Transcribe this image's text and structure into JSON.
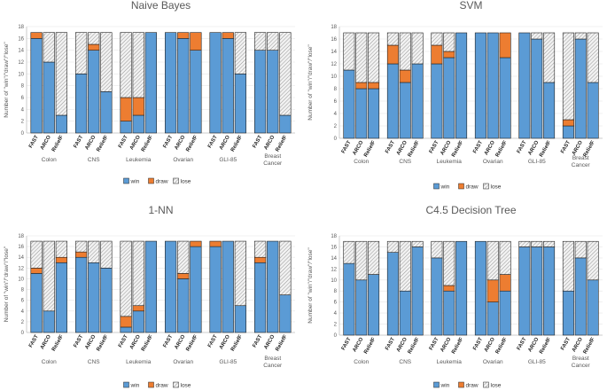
{
  "figure": {
    "legend_labels": {
      "win": "win",
      "draw": "draw",
      "lose": "lose"
    },
    "colors": {
      "win": "#5b9bd5",
      "draw": "#ed7d31",
      "lose": "#e8e8e8",
      "edge": "#222222"
    }
  },
  "chart_data": [
    {
      "type": "bar",
      "stacked": true,
      "title": "Naive Bayes",
      "ylabel": "Number of \"win\"/\"draw\"/\"lose\"",
      "ylim": [
        0,
        18
      ],
      "yticks": [
        0,
        2,
        4,
        6,
        8,
        10,
        12,
        14,
        16,
        18
      ],
      "groups": [
        "Colon",
        "CNS",
        "Leukemia",
        "Ovarian",
        "GLI-85",
        "Breast Cancer"
      ],
      "methods": [
        "FAST",
        "ARCO",
        "ReliefF"
      ],
      "series": [
        {
          "name": "win",
          "values": [
            [
              16,
              12,
              3
            ],
            [
              10,
              14,
              7
            ],
            [
              2,
              3,
              17
            ],
            [
              17,
              16,
              14
            ],
            [
              17,
              16,
              10
            ],
            [
              14,
              14,
              3
            ]
          ]
        },
        {
          "name": "draw",
          "values": [
            [
              1,
              0,
              0
            ],
            [
              0,
              1,
              0
            ],
            [
              4,
              3,
              0
            ],
            [
              0,
              1,
              3
            ],
            [
              0,
              1,
              0
            ],
            [
              0,
              0,
              0
            ]
          ]
        },
        {
          "name": "lose",
          "values": [
            [
              0,
              5,
              14
            ],
            [
              7,
              2,
              10
            ],
            [
              11,
              11,
              0
            ],
            [
              0,
              0,
              0
            ],
            [
              0,
              0,
              7
            ],
            [
              3,
              3,
              14
            ]
          ]
        }
      ],
      "legend": "bottom-center"
    },
    {
      "type": "bar",
      "stacked": true,
      "title": "SVM",
      "ylabel": "Number of \"win\"/\"draw\"/\"lose\"",
      "ylim": [
        0,
        18
      ],
      "yticks": [
        0,
        2,
        4,
        6,
        8,
        10,
        12,
        14,
        16,
        18
      ],
      "groups": [
        "Colon",
        "CNS",
        "Leukemia",
        "Ovarian",
        "GLI-85",
        "Breast Cancer"
      ],
      "methods": [
        "FAST",
        "ARCO",
        "ReliefF"
      ],
      "series": [
        {
          "name": "win",
          "values": [
            [
              11,
              8,
              8
            ],
            [
              12,
              9,
              12
            ],
            [
              12,
              13,
              17
            ],
            [
              17,
              17,
              13
            ],
            [
              17,
              16,
              9
            ],
            [
              2,
              16,
              9
            ]
          ]
        },
        {
          "name": "draw",
          "values": [
            [
              0,
              1,
              1
            ],
            [
              3,
              2,
              0
            ],
            [
              3,
              1,
              0
            ],
            [
              0,
              0,
              4
            ],
            [
              0,
              0,
              0
            ],
            [
              1,
              0,
              0
            ]
          ]
        },
        {
          "name": "lose",
          "values": [
            [
              6,
              8,
              8
            ],
            [
              2,
              6,
              5
            ],
            [
              2,
              3,
              0
            ],
            [
              0,
              0,
              0
            ],
            [
              0,
              1,
              8
            ],
            [
              14,
              1,
              8
            ]
          ]
        }
      ],
      "legend": "bottom-center"
    },
    {
      "type": "bar",
      "stacked": true,
      "title": "1-NN",
      "ylabel": "Number of \"win\"/\"draw\"/\"lose\"",
      "ylim": [
        0,
        18
      ],
      "yticks": [
        0,
        2,
        4,
        6,
        8,
        10,
        12,
        14,
        16,
        18
      ],
      "groups": [
        "Colon",
        "CNS",
        "Leukemia",
        "Ovarian",
        "GLI-85",
        "Breast Cancer"
      ],
      "methods": [
        "FAST",
        "ARCO",
        "ReliefF"
      ],
      "series": [
        {
          "name": "win",
          "values": [
            [
              11,
              4,
              13
            ],
            [
              14,
              13,
              12
            ],
            [
              1,
              4,
              17
            ],
            [
              17,
              10,
              16
            ],
            [
              16,
              17,
              5
            ],
            [
              13,
              17,
              7
            ]
          ]
        },
        {
          "name": "draw",
          "values": [
            [
              1,
              0,
              1
            ],
            [
              1,
              0,
              0
            ],
            [
              2,
              1,
              0
            ],
            [
              0,
              1,
              1
            ],
            [
              1,
              0,
              0
            ],
            [
              1,
              0,
              0
            ]
          ]
        },
        {
          "name": "lose",
          "values": [
            [
              5,
              13,
              3
            ],
            [
              2,
              4,
              5
            ],
            [
              14,
              12,
              0
            ],
            [
              0,
              6,
              0
            ],
            [
              0,
              0,
              12
            ],
            [
              3,
              0,
              10
            ]
          ]
        }
      ],
      "legend": "bottom-center"
    },
    {
      "type": "bar",
      "stacked": true,
      "title": "C4.5 Decision Tree",
      "ylabel": "Number of \"win\"/\"draw\"/\"lose\"",
      "ylim": [
        0,
        18
      ],
      "yticks": [
        0,
        2,
        4,
        6,
        8,
        10,
        12,
        14,
        16,
        18
      ],
      "groups": [
        "Colon",
        "CNS",
        "Leukemia",
        "Ovarian",
        "GLI-85",
        "Breast Cancer"
      ],
      "methods": [
        "FAST",
        "ARCO",
        "ReliefF"
      ],
      "series": [
        {
          "name": "win",
          "values": [
            [
              13,
              10,
              11
            ],
            [
              15,
              8,
              16
            ],
            [
              14,
              8,
              17
            ],
            [
              17,
              6,
              8
            ],
            [
              16,
              16,
              16
            ],
            [
              8,
              14,
              10
            ]
          ]
        },
        {
          "name": "draw",
          "values": [
            [
              0,
              0,
              0
            ],
            [
              0,
              0,
              0
            ],
            [
              0,
              1,
              0
            ],
            [
              0,
              4,
              3
            ],
            [
              0,
              0,
              0
            ],
            [
              0,
              0,
              0
            ]
          ]
        },
        {
          "name": "lose",
          "values": [
            [
              4,
              7,
              6
            ],
            [
              2,
              9,
              1
            ],
            [
              3,
              8,
              0
            ],
            [
              0,
              7,
              6
            ],
            [
              1,
              1,
              1
            ],
            [
              9,
              3,
              7
            ]
          ]
        }
      ],
      "legend": "bottom-center"
    }
  ]
}
